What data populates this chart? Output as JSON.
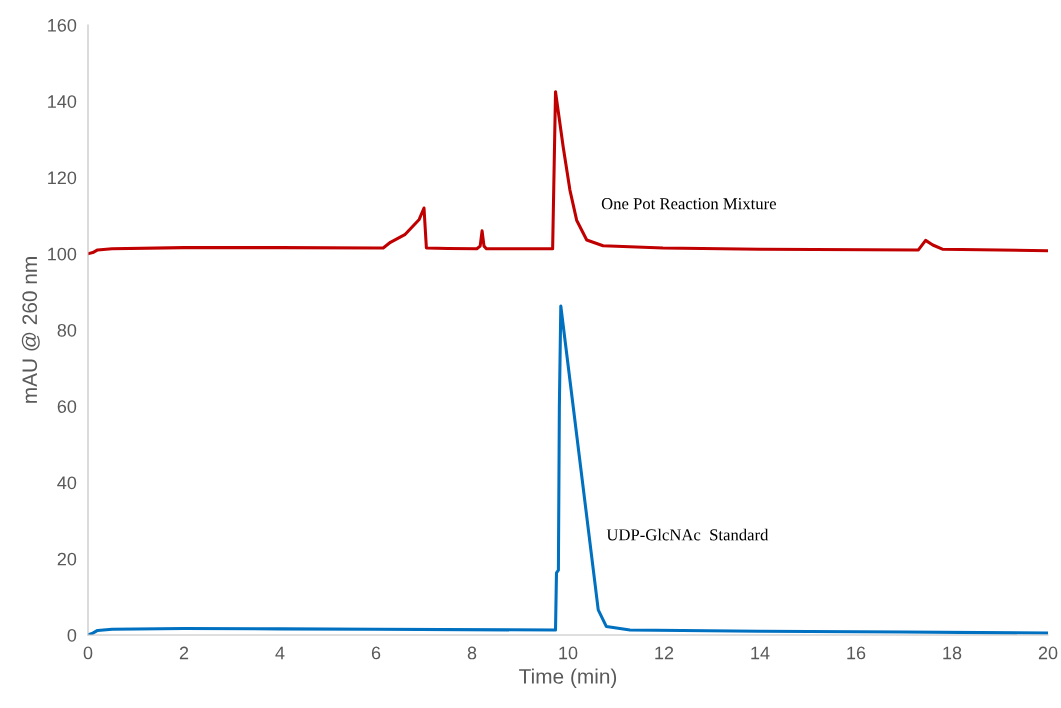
{
  "chart_data": {
    "type": "line",
    "xlabel": "Time (min)",
    "ylabel": "mAU @ 260 nm",
    "xlim": [
      0,
      20
    ],
    "xticks": [
      0,
      2,
      4,
      6,
      8,
      10,
      12,
      14,
      16,
      18,
      20
    ],
    "ylim": [
      0,
      160
    ],
    "yticks": [
      0,
      20,
      40,
      60,
      80,
      100,
      120,
      140,
      160
    ],
    "grid": false,
    "legend": false,
    "marker": "none",
    "line_style": "solid",
    "series": [
      {
        "name": "One Pot Reaction Mixture",
        "color": "#c00000",
        "x": [
          0,
          0.1,
          0.2,
          0.5,
          2,
          4,
          6,
          6.15,
          6.3,
          6.6,
          6.9,
          7.0,
          7.05,
          7.5,
          8.1,
          8.17,
          8.21,
          8.25,
          8.3,
          9,
          9.68,
          9.74,
          9.9,
          10.04,
          10.18,
          10.39,
          10.73,
          11.98,
          14,
          17.3,
          17.45,
          17.6,
          17.8,
          20
        ],
        "values": [
          100,
          100.3,
          101,
          101.3,
          101.6,
          101.6,
          101.5,
          101.5,
          103,
          105,
          109,
          112,
          101.5,
          101.4,
          101.3,
          102,
          106,
          102,
          101.3,
          101.3,
          101.3,
          142.5,
          128,
          116.7,
          108.8,
          103.6,
          102.1,
          101.5,
          101.2,
          101,
          103.5,
          102.3,
          101.2,
          100.8
        ]
      },
      {
        "name": "UDP-GlcNAc  Standard",
        "color": "#0070c0",
        "x": [
          0,
          0.1,
          0.2,
          0.5,
          2,
          4,
          6,
          9.74,
          9.76,
          9.8,
          9.82,
          9.85,
          10.63,
          10.8,
          11.29,
          14,
          17,
          20
        ],
        "values": [
          0,
          0.5,
          1.2,
          1.5,
          1.7,
          1.6,
          1.5,
          1.3,
          16.3,
          17,
          60,
          86.3,
          6.6,
          2.2,
          1.3,
          1,
          0.8,
          0.5
        ]
      }
    ]
  }
}
